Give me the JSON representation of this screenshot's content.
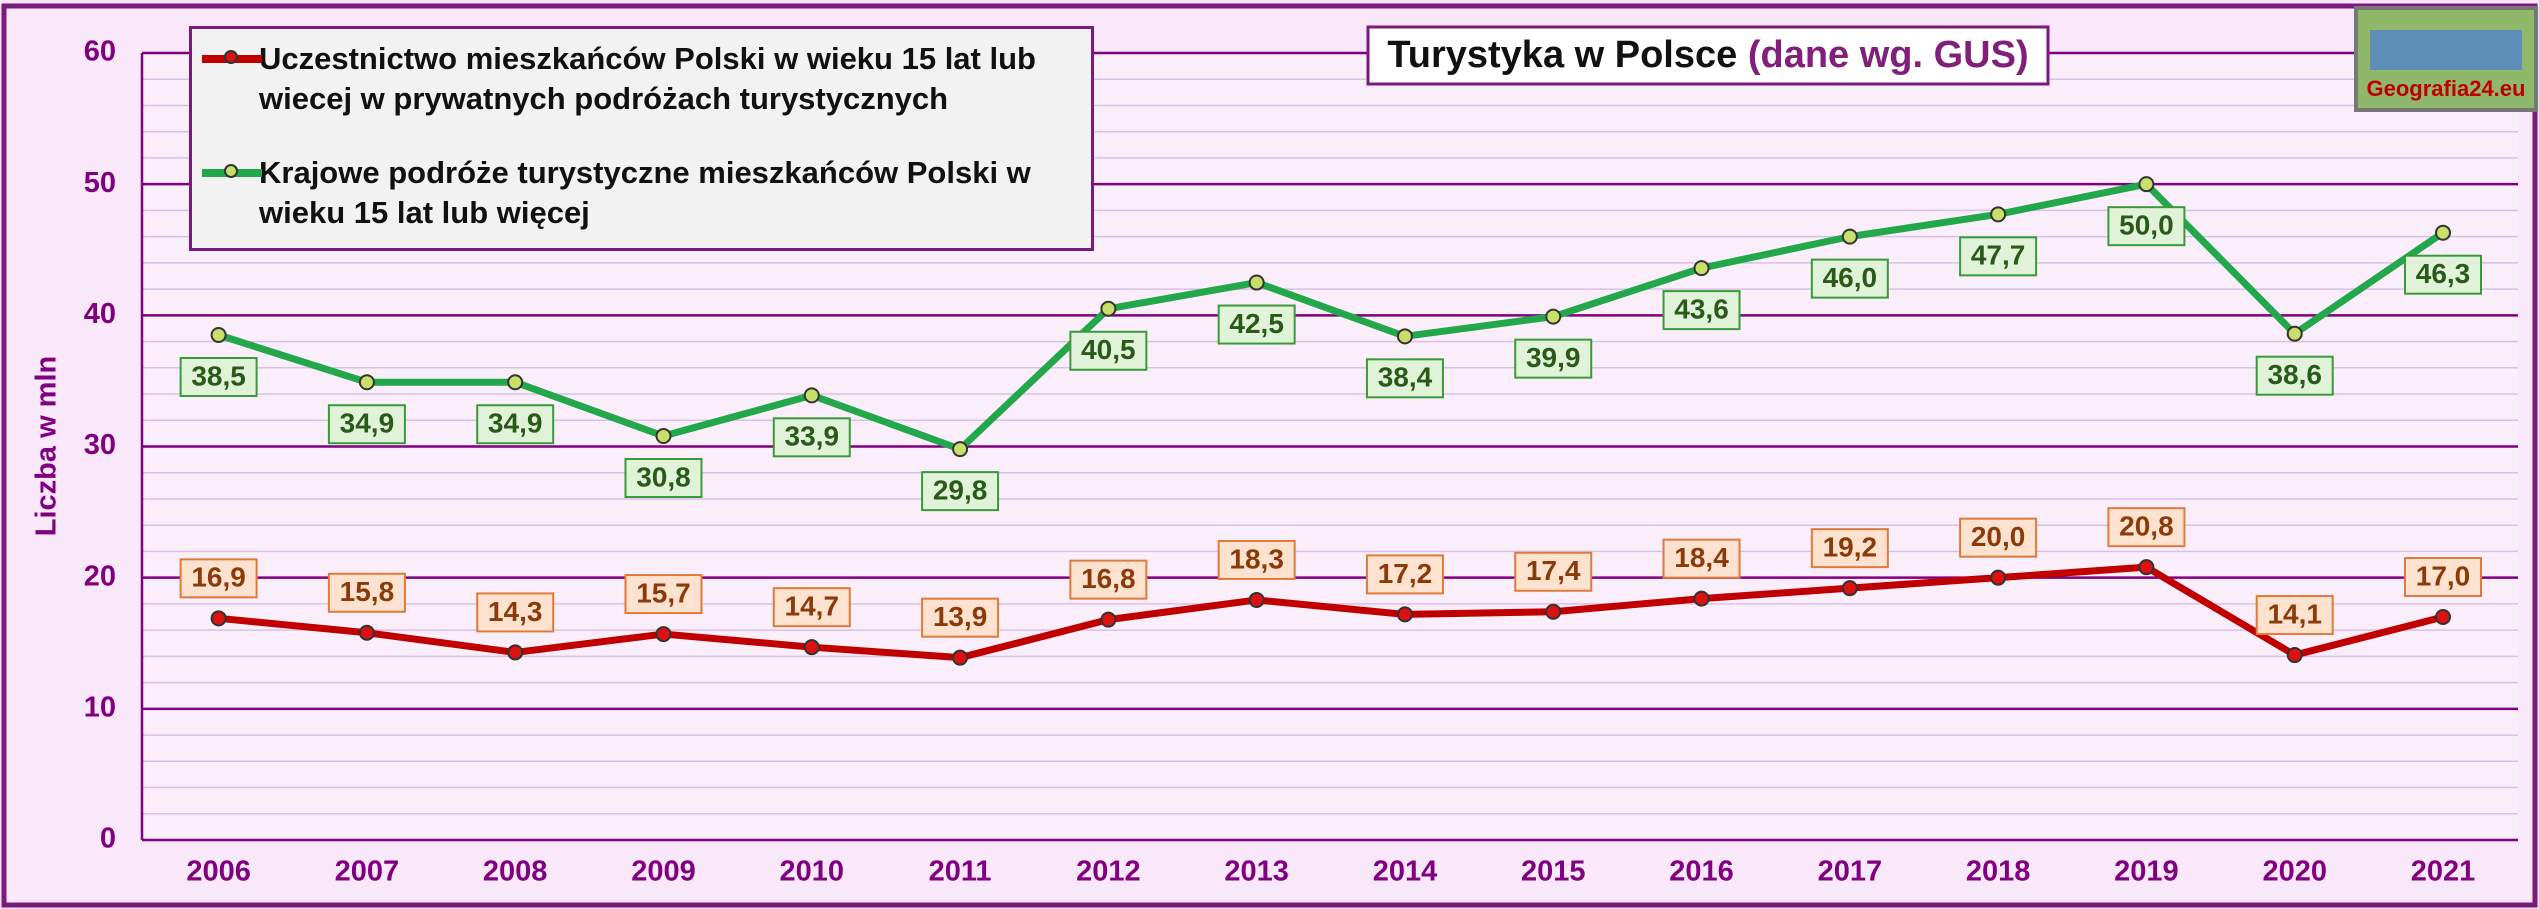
{
  "chart_data": {
    "type": "line",
    "title": "Turystyka w Polsce",
    "subtitle": "(dane wg. GUS)",
    "watermark": "Geografia24.eu",
    "y_label": "Liczba w mln",
    "categories": [
      "2006",
      "2007",
      "2008",
      "2009",
      "2010",
      "2011",
      "2012",
      "2013",
      "2014",
      "2015",
      "2016",
      "2017",
      "2018",
      "2019",
      "2020",
      "2021"
    ],
    "series": [
      {
        "name": "Uczestnictwo mieszkańców Polski w wieku 15 lat lub wiecej w prywatnych podróżach turystycznych",
        "color": "#c00000",
        "marker_color": "#dd1111",
        "values": [
          16.9,
          15.8,
          14.3,
          15.7,
          14.7,
          13.9,
          16.8,
          18.3,
          17.2,
          17.4,
          18.4,
          19.2,
          20.0,
          20.8,
          14.1,
          17.0
        ],
        "value_labels": [
          "16,9",
          "15,8",
          "14,3",
          "15,7",
          "14,7",
          "13,9",
          "16,8",
          "18,3",
          "17,2",
          "17,4",
          "18,4",
          "19,2",
          "20,0",
          "20,8",
          "14,1",
          "17,0"
        ]
      },
      {
        "name": "Krajowe podróże turystyczne mieszkańców Polski w wieku 15 lat lub więcej",
        "color": "#22a84a",
        "marker_color": "#c8e06a",
        "values": [
          38.5,
          34.9,
          34.9,
          30.8,
          33.9,
          29.8,
          40.5,
          42.5,
          38.4,
          39.9,
          43.6,
          46.0,
          47.7,
          50.0,
          38.6,
          46.3
        ],
        "value_labels": [
          "38,5",
          "34,9",
          "34,9",
          "30,8",
          "33,9",
          "29,8",
          "40,5",
          "42,5",
          "38,4",
          "39,9",
          "43,6",
          "46,0",
          "47,7",
          "50,0",
          "38,6",
          "46,3"
        ]
      }
    ],
    "ylim": [
      0,
      60
    ],
    "yticks": [
      0,
      10,
      20,
      30,
      40,
      50,
      60
    ],
    "yticks_minor": [
      2,
      4,
      6,
      8,
      12,
      14,
      16,
      18,
      22,
      24,
      26,
      28,
      32,
      34,
      36,
      38,
      42,
      44,
      46,
      48,
      52,
      54,
      56,
      58
    ],
    "grid": true,
    "legend": "upper left"
  }
}
